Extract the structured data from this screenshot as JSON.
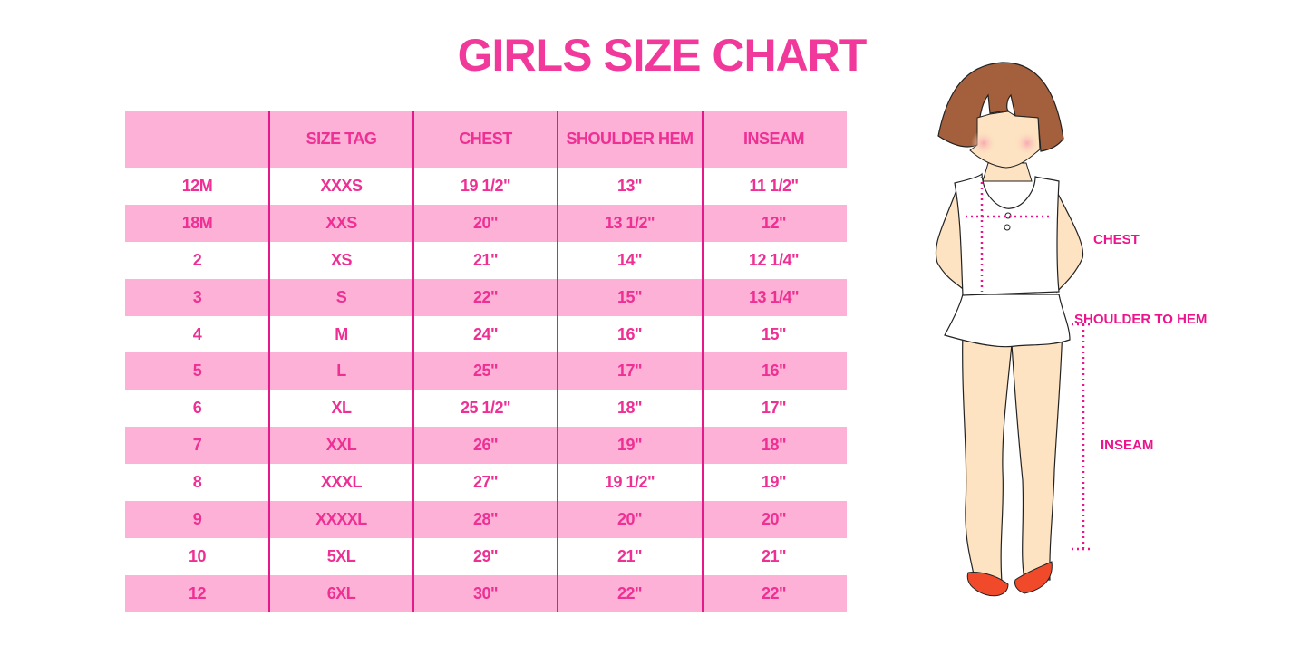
{
  "title": "GIRLS SIZE CHART",
  "table": {
    "headers": [
      "",
      "SIZE TAG",
      "CHEST",
      "SHOULDER HEM",
      "INSEAM"
    ],
    "rows": [
      [
        "12M",
        "XXXS",
        "19 1/2\"",
        "13\"",
        "11 1/2\""
      ],
      [
        "18M",
        "XXS",
        "20\"",
        "13 1/2\"",
        "12\""
      ],
      [
        "2",
        "XS",
        "21\"",
        "14\"",
        "12 1/4\""
      ],
      [
        "3",
        "S",
        "22\"",
        "15\"",
        "13 1/4\""
      ],
      [
        "4",
        "M",
        "24\"",
        "16\"",
        "15\""
      ],
      [
        "5",
        "L",
        "25\"",
        "17\"",
        "16\""
      ],
      [
        "6",
        "XL",
        "25 1/2\"",
        "18\"",
        "17\""
      ],
      [
        "7",
        "XXL",
        "26\"",
        "19\"",
        "18\""
      ],
      [
        "8",
        "XXXL",
        "27\"",
        "19 1/2\"",
        "19\""
      ],
      [
        "9",
        "XXXXL",
        "28\"",
        "20\"",
        "20\""
      ],
      [
        "10",
        "5XL",
        "29\"",
        "21\"",
        "21\""
      ],
      [
        "12",
        "6XL",
        "30\"",
        "22\"",
        "22\""
      ]
    ]
  },
  "diagram": {
    "labels": {
      "chest": "CHEST",
      "shoulder_to_hem": "SHOULDER TO HEM",
      "inseam": "INSEAM"
    }
  },
  "colors": {
    "accent": "#ee2f94",
    "row_pink": "#fdb1d6",
    "divider": "#e6198a"
  }
}
